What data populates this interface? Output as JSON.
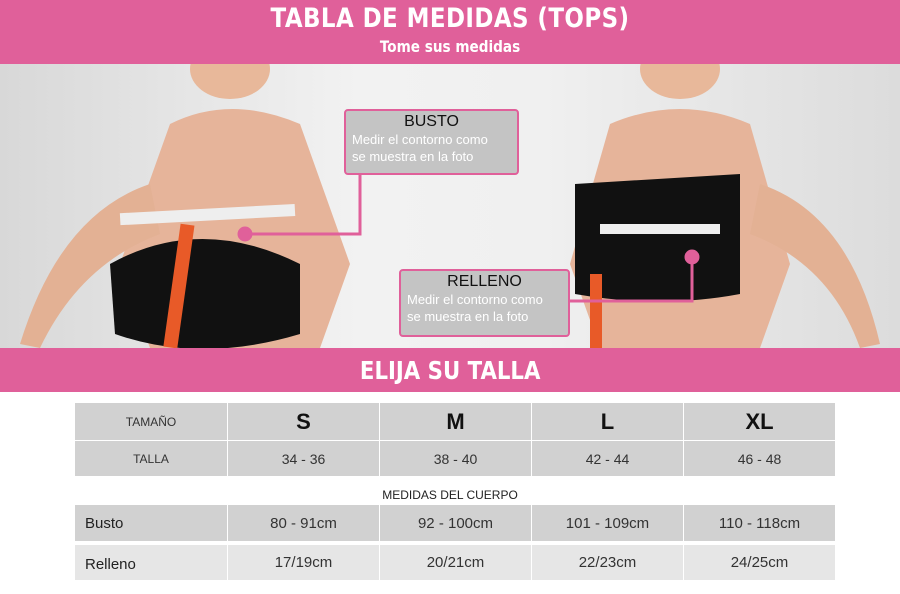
{
  "header": {
    "title": "TABLA DE MEDIDAS (TOPS)",
    "subtitle": "Tome sus medidas"
  },
  "callouts": [
    {
      "title": "BUSTO",
      "text1": "Medir el contorno como",
      "text2": "se muestra en la foto"
    },
    {
      "title": "RELLENO",
      "text1": "Medir el contorno como",
      "text2": "se muestra en la foto"
    }
  ],
  "section_title": "ELIJA SU TALLA",
  "colors": {
    "accent": "#e0609a",
    "cell": "#d1d1d1",
    "cell_light": "#e6e6e6"
  },
  "table": {
    "size_label": "TAMAÑO",
    "sizes": [
      "S",
      "M",
      "L",
      "XL"
    ],
    "talla_label": "TALLA",
    "tallas": [
      "34 - 36",
      "38 - 40",
      "42 - 44",
      "46 - 48"
    ],
    "body_caption": "MEDIDAS DEL CUERPO",
    "busto_label": "Busto",
    "busto": [
      "80 - 91cm",
      "92 - 100cm",
      "101 - 109cm",
      "110 - 118cm"
    ],
    "relleno_label": "Relleno",
    "relleno": [
      "17/19cm",
      "20/21cm",
      "22/23cm",
      "24/25cm"
    ]
  }
}
